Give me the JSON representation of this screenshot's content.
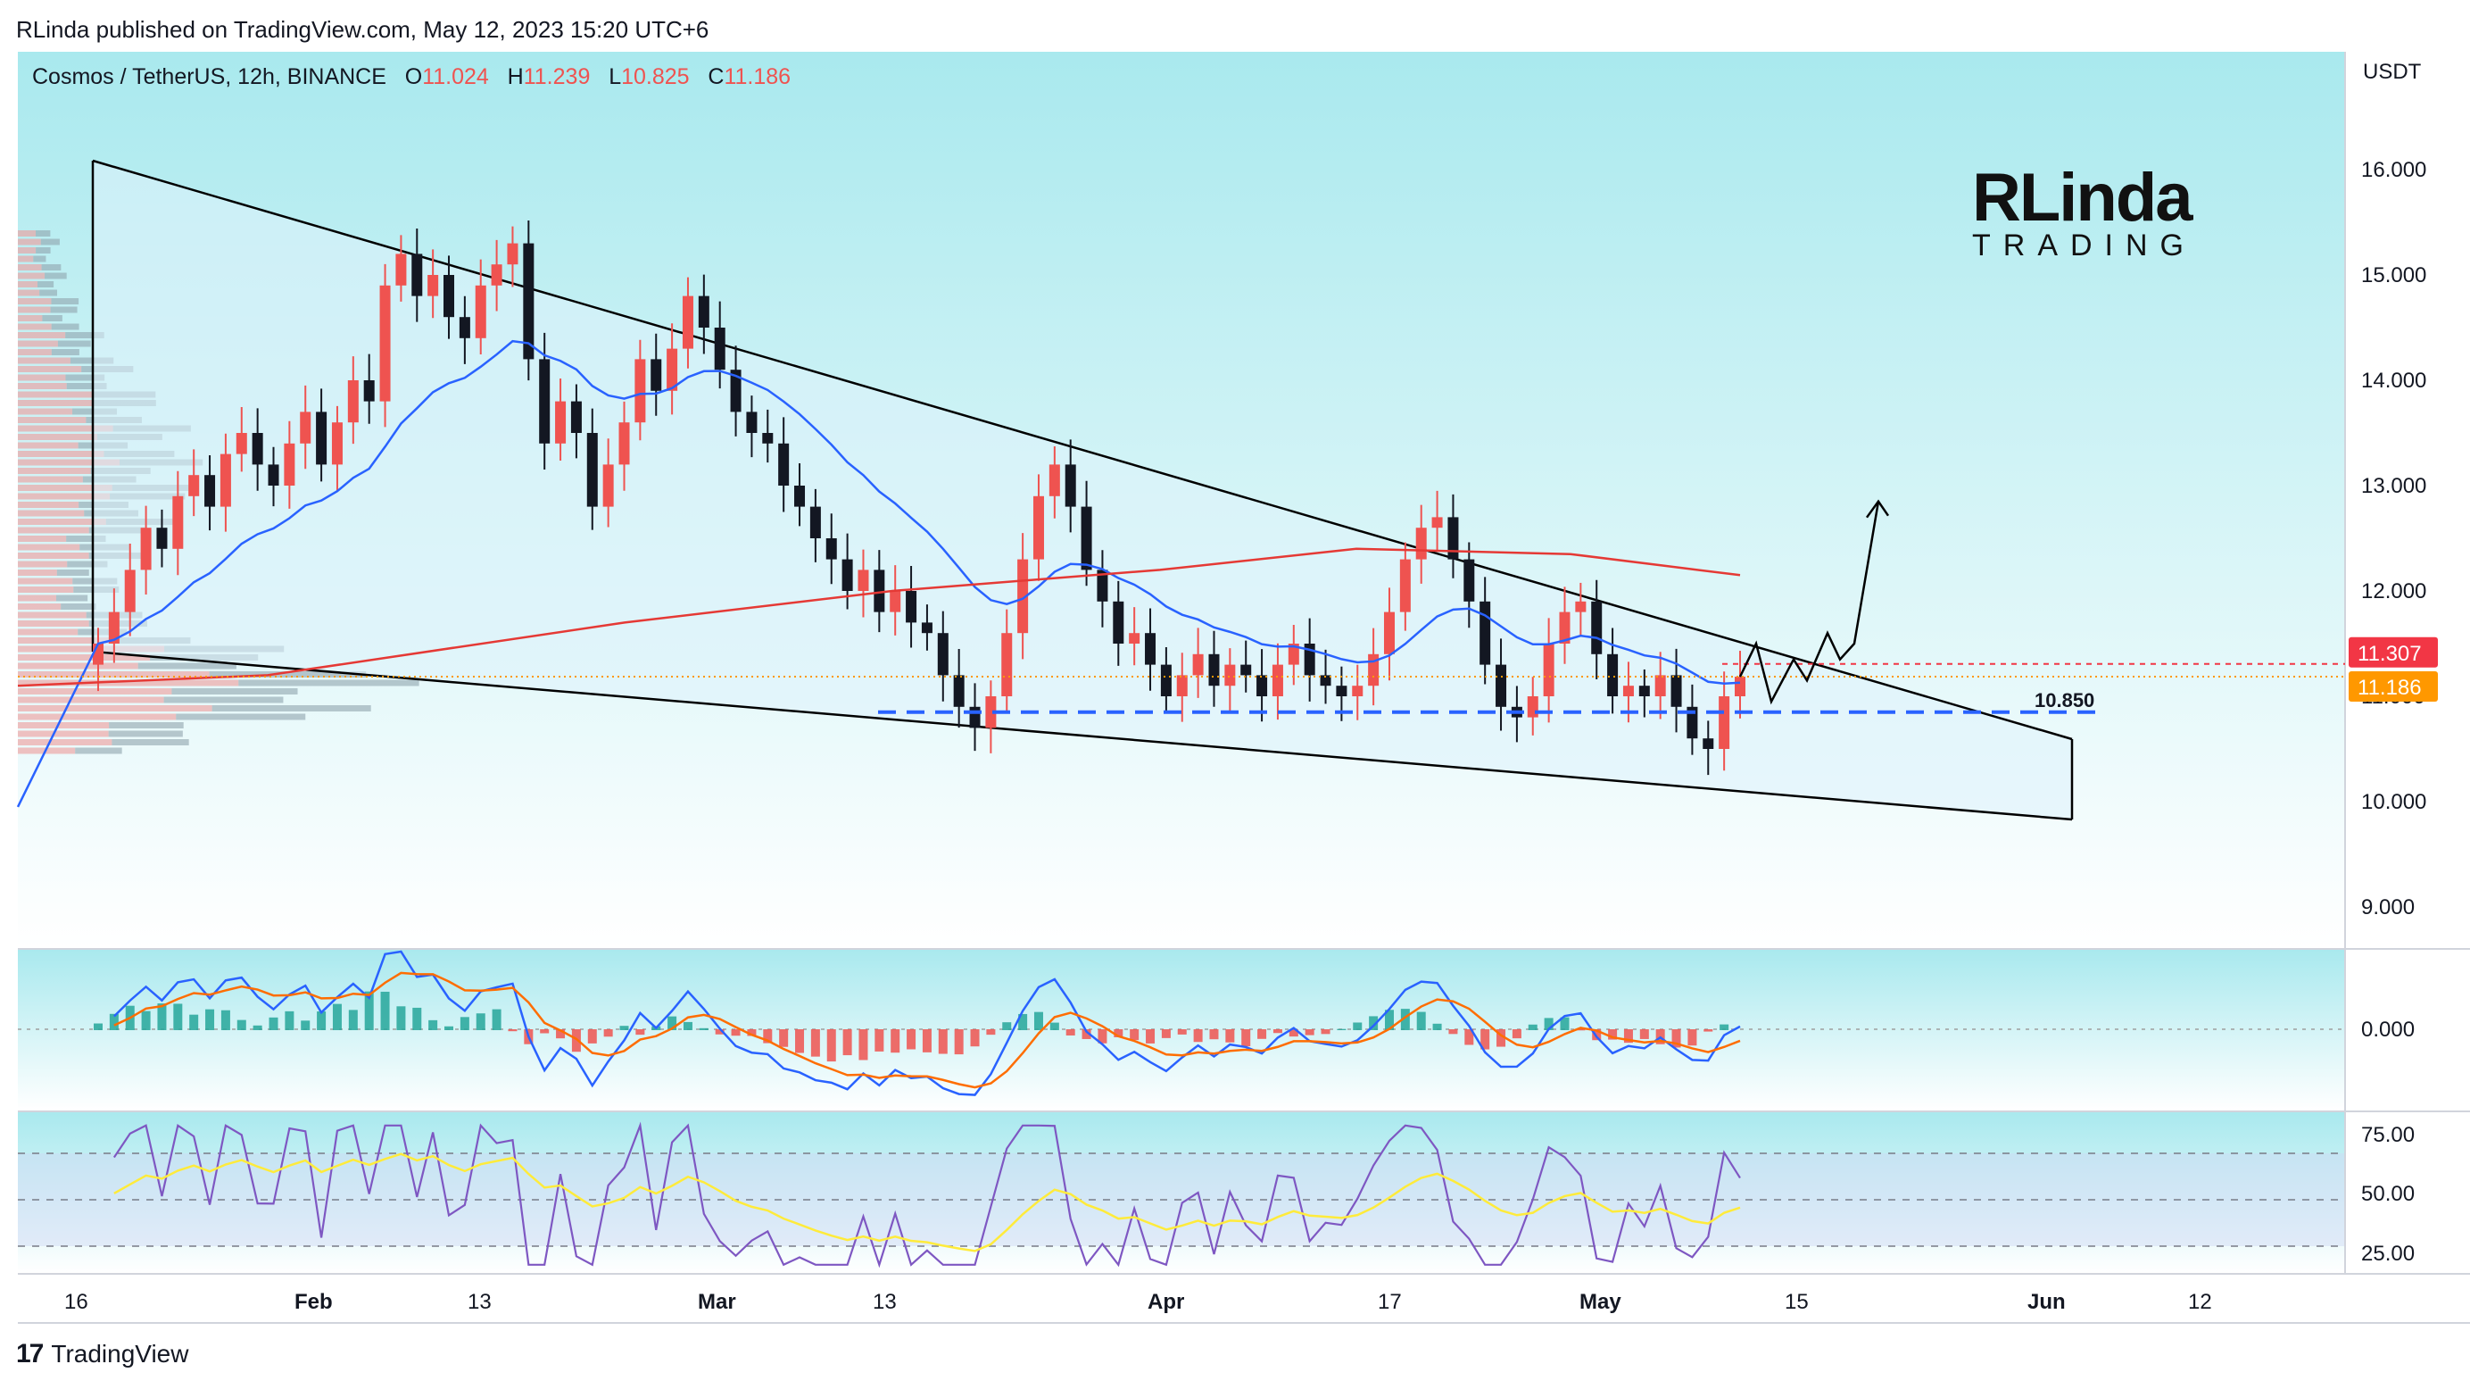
{
  "publisher_line": "RLinda published on TradingView.com, May 12, 2023 15:20 UTC+6",
  "legend": {
    "symbol": "Cosmos / TetherUS, 12h, BINANCE",
    "o_label": "O",
    "o": "11.024",
    "h_label": "H",
    "h": "11.239",
    "l_label": "L",
    "l": "10.825",
    "c_label": "C",
    "c": "11.186"
  },
  "watermark": {
    "top": "RLinda",
    "bottom": "TRADING"
  },
  "footer": {
    "brand": "TradingView",
    "mark": "17"
  },
  "colors": {
    "up": "#ef5350",
    "down": "#131722",
    "ema_blue": "#2962ff",
    "ema_red": "#e53935",
    "panel_bg_top": "#b2ebf2",
    "panel_bg_bottom": "#ffffff",
    "wedge_fill": "#dff3fb",
    "level_line": "#2962ff",
    "price_tag_red": "#f23645",
    "price_tag_orange": "#ff9800",
    "rsi_line": "#7e57c2",
    "rsi_ma": "#ffeb3b",
    "macd_line": "#2962ff",
    "signal_line": "#ff6d00",
    "hist_up": "#26a69a",
    "hist_down": "#ef5350"
  },
  "chart_data": [
    {
      "type": "candlestick",
      "title": "Cosmos / TetherUS, 12h, BINANCE",
      "currency": "USDT",
      "y_ticks": [
        "16.000",
        "15.000",
        "14.000",
        "13.000",
        "12.000",
        "11.000",
        "10.000",
        "9.000"
      ],
      "ylim": [
        8.6,
        16.9
      ],
      "x_ticks": [
        "16",
        "Feb",
        "13",
        "Mar",
        "13",
        "Apr",
        "17",
        "May",
        "15",
        "Jun",
        "12"
      ],
      "x_range": [
        "2023-01-12",
        "2023-06-21"
      ],
      "ohlc_sample_last": {
        "open": 11.024,
        "high": 11.239,
        "low": 10.825,
        "close": 11.186
      },
      "close_series": [
        11.5,
        11.8,
        12.2,
        12.6,
        12.4,
        12.9,
        13.1,
        12.8,
        13.3,
        13.5,
        13.2,
        13.0,
        13.4,
        13.7,
        13.2,
        13.6,
        14.0,
        13.8,
        14.9,
        15.2,
        14.8,
        15.0,
        14.6,
        14.4,
        14.9,
        15.1,
        15.3,
        14.2,
        13.4,
        13.8,
        13.5,
        12.8,
        13.2,
        13.6,
        14.2,
        13.9,
        14.3,
        14.8,
        14.5,
        14.1,
        13.7,
        13.5,
        13.4,
        13.0,
        12.8,
        12.5,
        12.3,
        12.0,
        12.2,
        11.8,
        12.0,
        11.7,
        11.6,
        11.2,
        10.9,
        10.7,
        11.0,
        11.6,
        12.3,
        12.9,
        13.2,
        12.8,
        12.2,
        11.9,
        11.5,
        11.6,
        11.3,
        11.0,
        11.2,
        11.4,
        11.1,
        11.3,
        11.2,
        11.0,
        11.3,
        11.5,
        11.2,
        11.1,
        11.0,
        11.1,
        11.4,
        11.8,
        12.3,
        12.6,
        12.7,
        12.3,
        11.9,
        11.3,
        10.9,
        10.8,
        11.0,
        11.5,
        11.8,
        11.9,
        11.4,
        11.0,
        11.1,
        11.0,
        11.2,
        10.9,
        10.6,
        10.5,
        11.0,
        11.186
      ],
      "levels": {
        "dashed_support": "10.850",
        "red_price_tag": "11.307",
        "orange_price_tag": "11.186"
      },
      "indicators": [
        "EMA (blue)",
        "EMA 200 (red)",
        "Volume profile",
        "Descending wedge"
      ]
    },
    {
      "type": "macd",
      "y_ticks": [
        "0.000"
      ]
    },
    {
      "type": "rsi",
      "y_ticks": [
        "75.00",
        "50.00",
        "25.00"
      ],
      "levels": [
        70,
        50,
        30
      ]
    }
  ]
}
